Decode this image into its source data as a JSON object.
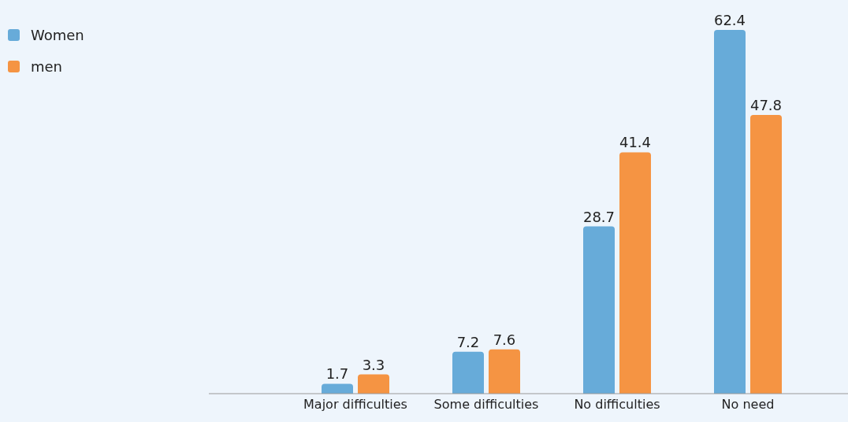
{
  "chart_data": {
    "type": "bar",
    "categories": [
      "Major difficulties",
      "Some difficulties",
      "No difficulties",
      "No need"
    ],
    "series": [
      {
        "name": "Women",
        "color": "#67abd9",
        "values": [
          1.7,
          7.2,
          28.7,
          62.4
        ]
      },
      {
        "name": "men",
        "color": "#f59443",
        "values": [
          3.3,
          7.6,
          41.4,
          47.8
        ]
      }
    ],
    "data_labels": true,
    "legend": "top left",
    "grid": false
  }
}
